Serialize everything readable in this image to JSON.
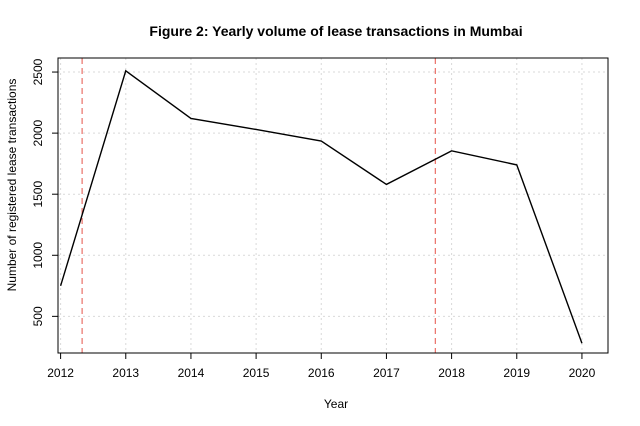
{
  "chart_data": {
    "type": "line",
    "title": "Figure 2: Yearly volume of lease transactions in Mumbai",
    "xlabel": "Year",
    "ylabel": "Number of registered lease transactions",
    "x": [
      2012,
      2013,
      2014,
      2015,
      2016,
      2017,
      2018,
      2019,
      2020
    ],
    "values": [
      750,
      2510,
      2120,
      2030,
      1935,
      1580,
      1855,
      1740,
      280
    ],
    "x_ticks": [
      "2012",
      "2013",
      "2014",
      "2015",
      "2016",
      "2017",
      "2018",
      "2019",
      "2020"
    ],
    "y_ticks": [
      "500",
      "1000",
      "1500",
      "2000",
      "2500"
    ],
    "xlim": [
      2011.96,
      2020.4
    ],
    "ylim": [
      200,
      2615
    ],
    "grid": true,
    "vlines": [
      2012.33,
      2017.75
    ],
    "colors": {
      "line": "#000000",
      "vline": "#e8635a",
      "grid": "#d9d9d9"
    }
  }
}
